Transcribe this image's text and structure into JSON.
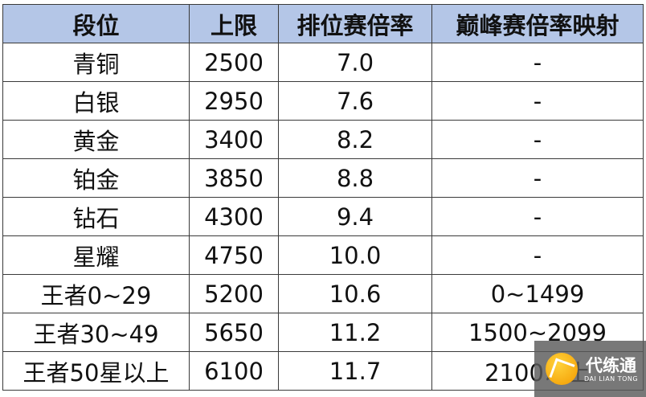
{
  "headers": [
    "段位",
    "上限",
    "排位赛倍率",
    "巅峰赛倍率映射"
  ],
  "rows": [
    [
      "青铜",
      "2500",
      "7.0",
      "-"
    ],
    [
      "白银",
      "2950",
      "7.6",
      "-"
    ],
    [
      "黄金",
      "3400",
      "8.2",
      "-"
    ],
    [
      "铂金",
      "3850",
      "8.8",
      "-"
    ],
    [
      "钻石",
      "4300",
      "9.4",
      "-"
    ],
    [
      "星耀",
      "4750",
      "10.0",
      "-"
    ],
    [
      "王者0~29",
      "5200",
      "10.6",
      "0~1499"
    ],
    [
      "王者30~49",
      "5650",
      "11.2",
      "1500~2099"
    ],
    [
      "王者50星以上",
      "6100",
      "11.7",
      "2100以上"
    ]
  ],
  "colors": {
    "header_bg": "#b4c6e7",
    "border": "#3a3a3a"
  },
  "watermark": {
    "cn": "代练通",
    "en": "DAI LIAN TONG"
  }
}
